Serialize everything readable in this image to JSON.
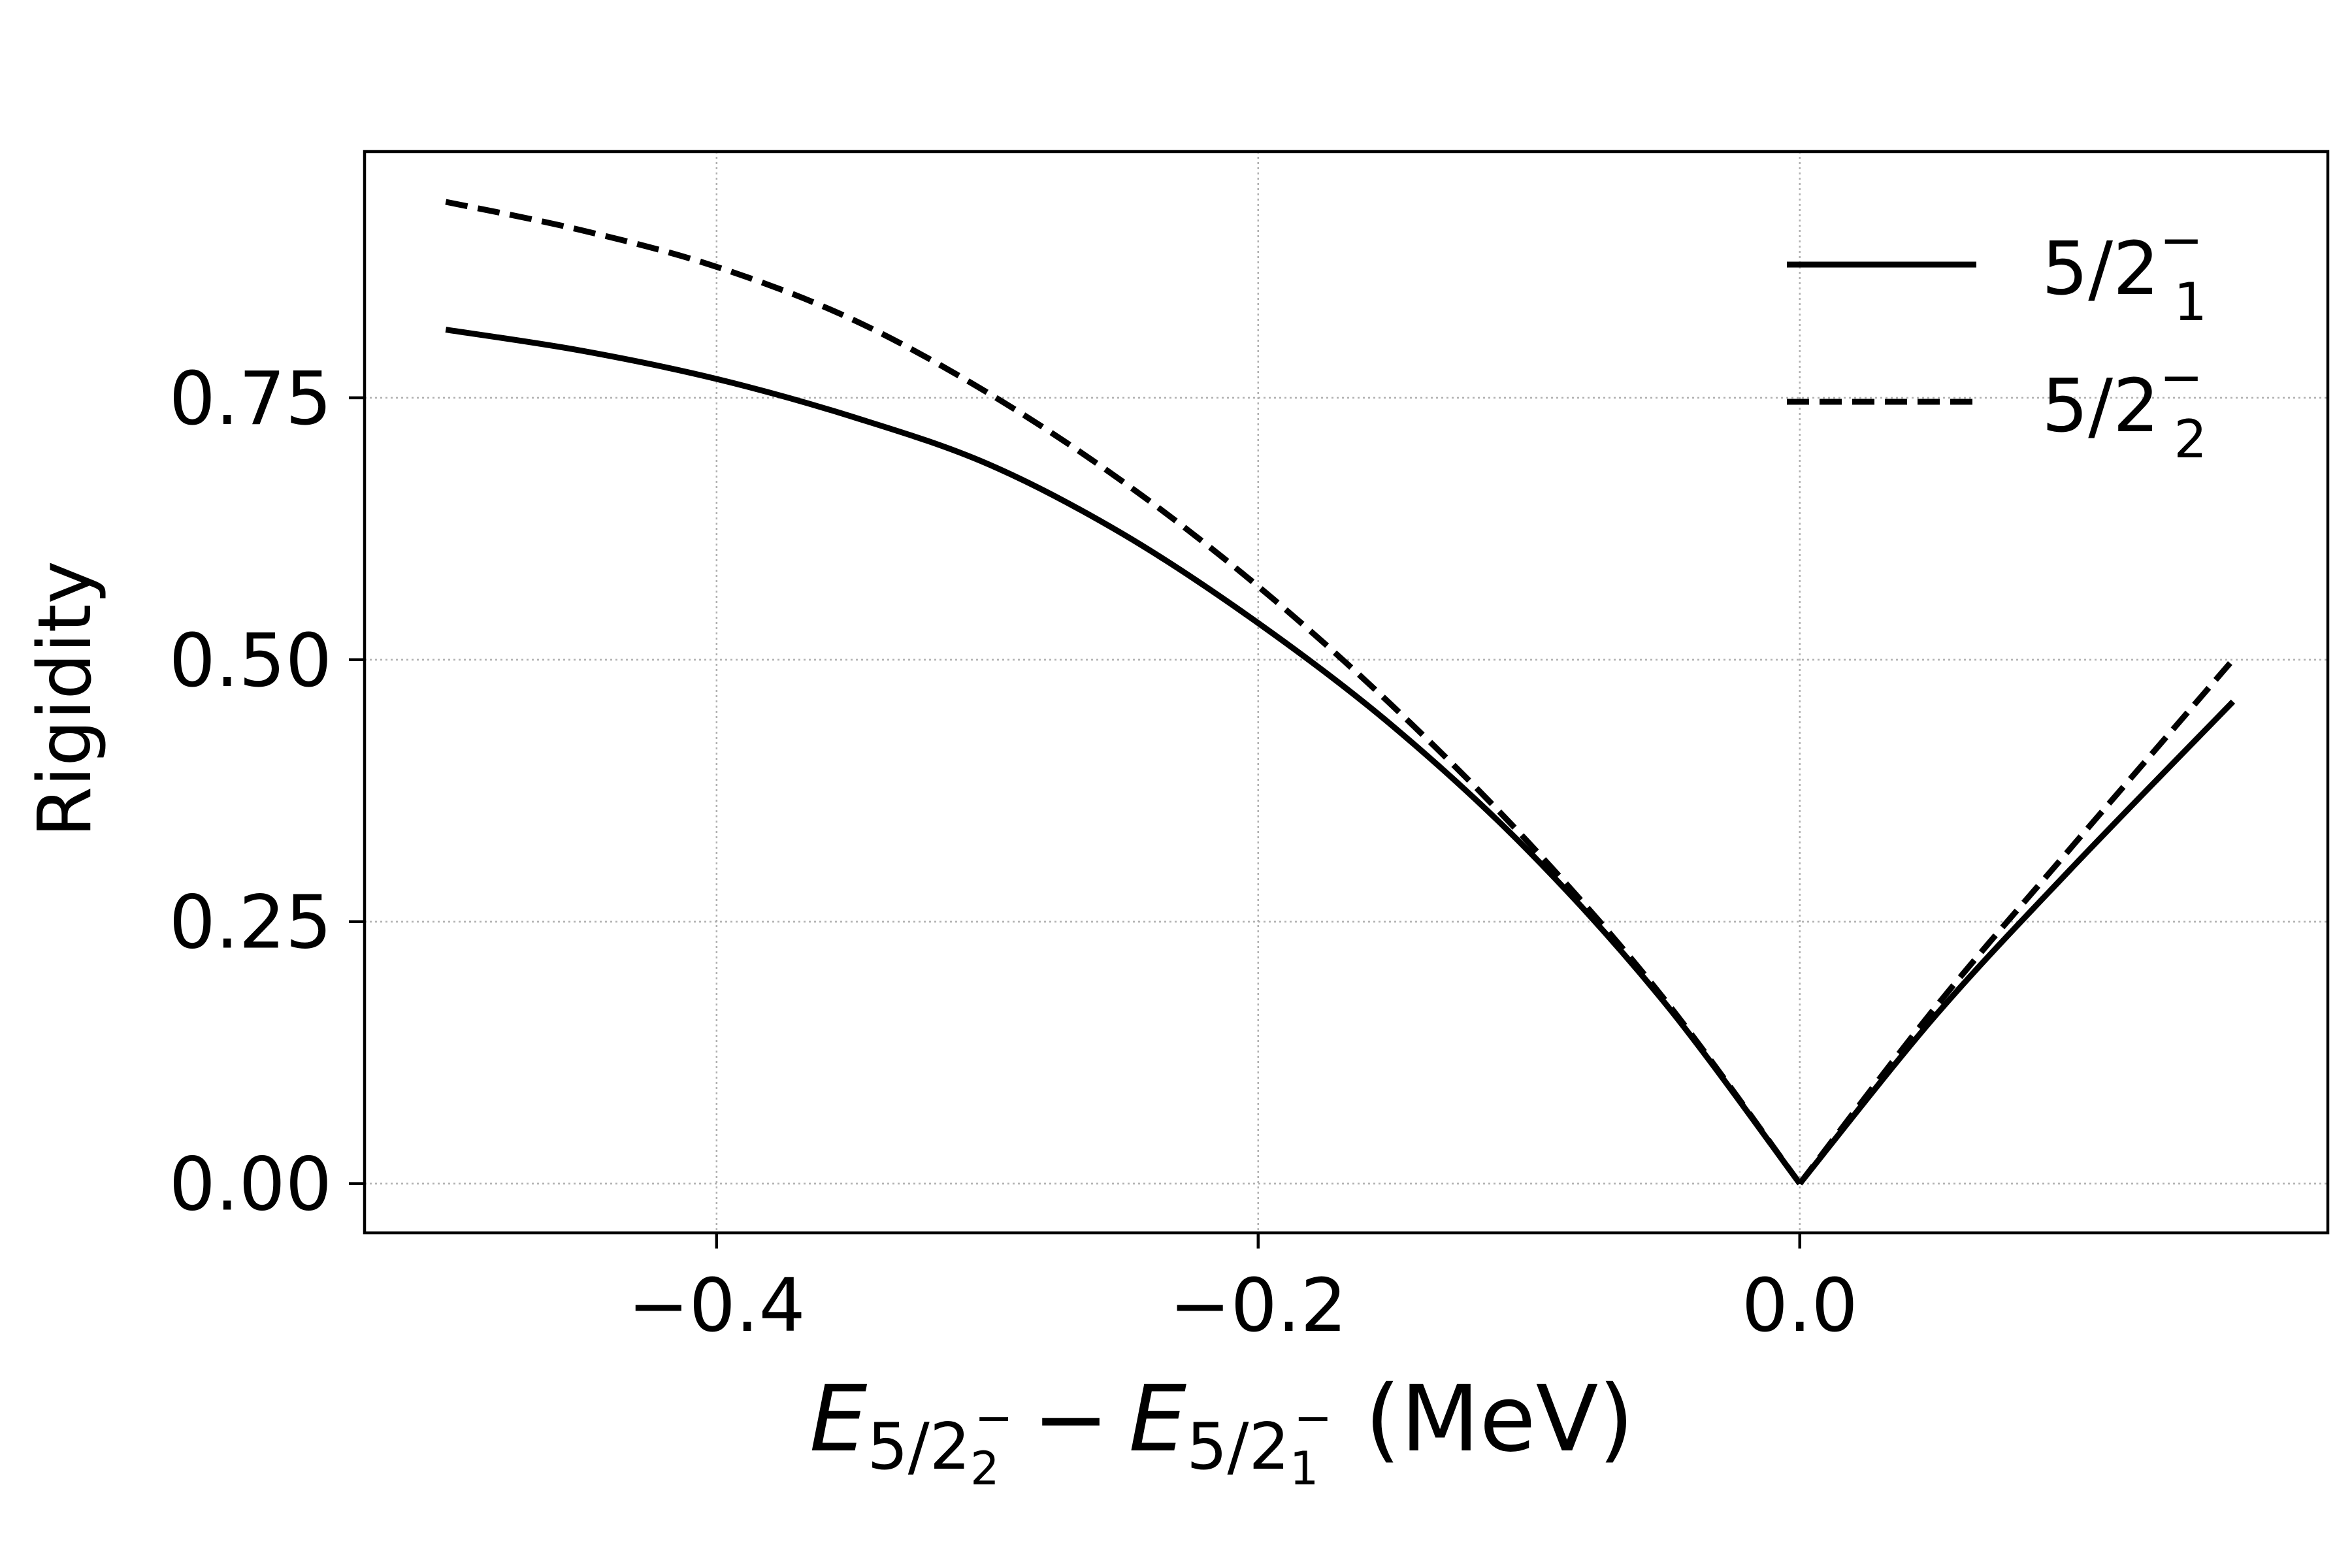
{
  "chart_data": {
    "type": "line",
    "xlabel": {
      "E_symbol": "E",
      "sub1_base": "5/2",
      "sub1_subscript": "2",
      "sub1_superscript": "−",
      "minus": "−",
      "sub2_base": "5/2",
      "sub2_subscript": "1",
      "sub2_superscript": "−",
      "unit": "(MeV)"
    },
    "ylabel": "Rigidity",
    "xlim": [
      -0.53,
      0.195
    ],
    "ylim": [
      -0.047,
      0.985
    ],
    "xticks": [
      {
        "value": -0.4,
        "label": "−0.4"
      },
      {
        "value": -0.2,
        "label": "−0.2"
      },
      {
        "value": 0.0,
        "label": "0.0"
      }
    ],
    "yticks": [
      {
        "value": 0.0,
        "label": "0.00"
      },
      {
        "value": 0.25,
        "label": "0.25"
      },
      {
        "value": 0.5,
        "label": "0.50"
      },
      {
        "value": 0.75,
        "label": "0.75"
      }
    ],
    "grid": true,
    "legend_position": "top-right",
    "series": [
      {
        "name_base": "5/2",
        "name_subscript": "1",
        "name_superscript": "−",
        "style": "solid",
        "color": "#000000",
        "x": [
          -0.5,
          -0.45,
          -0.4,
          -0.35,
          -0.3,
          -0.25,
          -0.2,
          -0.15,
          -0.1,
          -0.05,
          0.0,
          0.05,
          0.1,
          0.16
        ],
        "y": [
          0.815,
          0.795,
          0.768,
          0.732,
          0.687,
          0.62,
          0.535,
          0.436,
          0.317,
          0.173,
          0.0,
          0.16,
          0.3,
          0.46
        ]
      },
      {
        "name_base": "5/2",
        "name_subscript": "2",
        "name_superscript": "−",
        "style": "dashed",
        "color": "#000000",
        "x": [
          -0.5,
          -0.45,
          -0.4,
          -0.35,
          -0.3,
          -0.25,
          -0.2,
          -0.15,
          -0.1,
          -0.05,
          0.0,
          0.05,
          0.1,
          0.16
        ],
        "y": [
          0.937,
          0.91,
          0.875,
          0.825,
          0.755,
          0.67,
          0.57,
          0.455,
          0.325,
          0.176,
          0.0,
          0.168,
          0.32,
          0.5
        ]
      }
    ]
  }
}
